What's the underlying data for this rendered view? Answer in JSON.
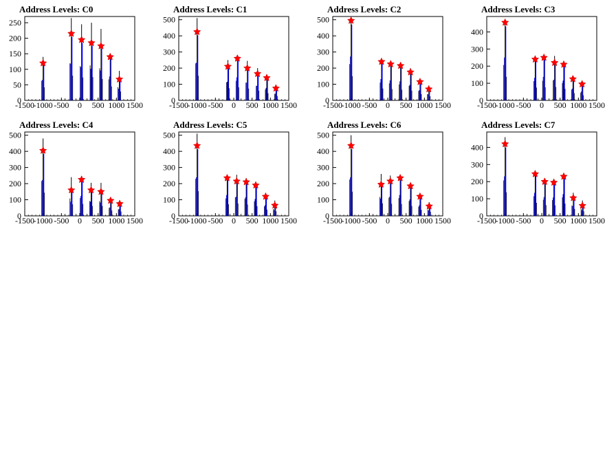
{
  "colors": {
    "background": "#ffffff",
    "axis": "#000000",
    "histogram_black": "#000000",
    "histogram_blue": "#0000ff",
    "marker_red": "#ff0000"
  },
  "marker": "red star markers at detected address-level peaks",
  "chart_data": [
    {
      "type": "histogram",
      "title": "Address Levels: C0",
      "xlim": [
        -1500,
        1500
      ],
      "xticks": [
        "-1500",
        "-1000",
        "-500",
        "0",
        "500",
        "1000",
        "1500"
      ],
      "ylim": [
        0,
        270
      ],
      "yticks": [
        "0",
        "50",
        "100",
        "150",
        "200",
        "250"
      ],
      "peaks": [
        {
          "x": -1000,
          "peak": 120,
          "max": 140
        },
        {
          "x": -230,
          "peak": 215,
          "max": 265
        },
        {
          "x": 50,
          "peak": 195,
          "max": 245
        },
        {
          "x": 320,
          "peak": 185,
          "max": 250
        },
        {
          "x": 580,
          "peak": 175,
          "max": 230
        },
        {
          "x": 830,
          "peak": 140,
          "max": 150
        },
        {
          "x": 1080,
          "peak": 68,
          "max": 95
        }
      ]
    },
    {
      "type": "histogram",
      "title": "Address Levels: C1",
      "xlim": [
        -1500,
        1500
      ],
      "xticks": [
        "-1500",
        "-1000",
        "-500",
        "0",
        "500",
        "1000",
        "1500"
      ],
      "ylim": [
        0,
        520
      ],
      "yticks": [
        "0",
        "100",
        "200",
        "300",
        "400",
        "500"
      ],
      "peaks": [
        {
          "x": -1000,
          "peak": 425,
          "max": 510
        },
        {
          "x": -160,
          "peak": 210,
          "max": 250
        },
        {
          "x": 100,
          "peak": 260,
          "max": 270
        },
        {
          "x": 370,
          "peak": 200,
          "max": 245
        },
        {
          "x": 650,
          "peak": 165,
          "max": 200
        },
        {
          "x": 900,
          "peak": 140,
          "max": 150
        },
        {
          "x": 1150,
          "peak": 75,
          "max": 90
        }
      ]
    },
    {
      "type": "histogram",
      "title": "Address Levels: C2",
      "xlim": [
        -1500,
        1500
      ],
      "xticks": [
        "-1500",
        "-1000",
        "-500",
        "0",
        "500",
        "1000",
        "1500"
      ],
      "ylim": [
        0,
        520
      ],
      "yticks": [
        "0",
        "100",
        "200",
        "300",
        "400",
        "500"
      ],
      "peaks": [
        {
          "x": -1000,
          "peak": 495,
          "max": 500
        },
        {
          "x": -170,
          "peak": 240,
          "max": 245
        },
        {
          "x": 80,
          "peak": 225,
          "max": 235
        },
        {
          "x": 350,
          "peak": 215,
          "max": 220
        },
        {
          "x": 620,
          "peak": 175,
          "max": 200
        },
        {
          "x": 880,
          "peak": 115,
          "max": 130
        },
        {
          "x": 1120,
          "peak": 70,
          "max": 85
        }
      ]
    },
    {
      "type": "histogram",
      "title": "Address Levels: C3",
      "xlim": [
        -1500,
        1500
      ],
      "xticks": [
        "-1500",
        "-1000",
        "-500",
        "0",
        "500",
        "1000",
        "1500"
      ],
      "ylim": [
        0,
        490
      ],
      "yticks": [
        "0",
        "100",
        "200",
        "300",
        "400"
      ],
      "peaks": [
        {
          "x": -1000,
          "peak": 455,
          "max": 460
        },
        {
          "x": -180,
          "peak": 240,
          "max": 250
        },
        {
          "x": 60,
          "peak": 250,
          "max": 255
        },
        {
          "x": 350,
          "peak": 220,
          "max": 260
        },
        {
          "x": 600,
          "peak": 210,
          "max": 225
        },
        {
          "x": 850,
          "peak": 125,
          "max": 140
        },
        {
          "x": 1100,
          "peak": 95,
          "max": 100
        }
      ]
    },
    {
      "type": "histogram",
      "title": "Address Levels: C4",
      "xlim": [
        -1500,
        1500
      ],
      "xticks": [
        "-1500",
        "-1000",
        "-500",
        "0",
        "500",
        "1000",
        "1500"
      ],
      "ylim": [
        0,
        520
      ],
      "yticks": [
        "0",
        "100",
        "200",
        "300",
        "400",
        "500"
      ],
      "peaks": [
        {
          "x": -1000,
          "peak": 405,
          "max": 480
        },
        {
          "x": -230,
          "peak": 160,
          "max": 240
        },
        {
          "x": 50,
          "peak": 225,
          "max": 245
        },
        {
          "x": 310,
          "peak": 160,
          "max": 205
        },
        {
          "x": 580,
          "peak": 150,
          "max": 205
        },
        {
          "x": 840,
          "peak": 95,
          "max": 110
        },
        {
          "x": 1090,
          "peak": 75,
          "max": 90
        }
      ]
    },
    {
      "type": "histogram",
      "title": "Address Levels: C5",
      "xlim": [
        -1500,
        1500
      ],
      "xticks": [
        "-1500",
        "-1000",
        "-500",
        "0",
        "500",
        "1000",
        "1500"
      ],
      "ylim": [
        0,
        520
      ],
      "yticks": [
        "0",
        "100",
        "200",
        "300",
        "400",
        "500"
      ],
      "peaks": [
        {
          "x": -1000,
          "peak": 435,
          "max": 510
        },
        {
          "x": -180,
          "peak": 235,
          "max": 240
        },
        {
          "x": 80,
          "peak": 215,
          "max": 255
        },
        {
          "x": 340,
          "peak": 210,
          "max": 235
        },
        {
          "x": 600,
          "peak": 190,
          "max": 200
        },
        {
          "x": 870,
          "peak": 120,
          "max": 130
        },
        {
          "x": 1120,
          "peak": 65,
          "max": 95
        }
      ]
    },
    {
      "type": "histogram",
      "title": "Address Levels: C6",
      "xlim": [
        -1500,
        1500
      ],
      "xticks": [
        "-1500",
        "-1000",
        "-500",
        "0",
        "500",
        "1000",
        "1500"
      ],
      "ylim": [
        0,
        520
      ],
      "yticks": [
        "0",
        "100",
        "200",
        "300",
        "400",
        "500"
      ],
      "peaks": [
        {
          "x": -1000,
          "peak": 435,
          "max": 500
        },
        {
          "x": -180,
          "peak": 195,
          "max": 260
        },
        {
          "x": 70,
          "peak": 215,
          "max": 250
        },
        {
          "x": 340,
          "peak": 235,
          "max": 245
        },
        {
          "x": 620,
          "peak": 185,
          "max": 205
        },
        {
          "x": 880,
          "peak": 120,
          "max": 125
        },
        {
          "x": 1130,
          "peak": 60,
          "max": 85
        }
      ]
    },
    {
      "type": "histogram",
      "title": "Address Levels: C7",
      "xlim": [
        -1500,
        1500
      ],
      "xticks": [
        "-1500",
        "-1000",
        "-500",
        "0",
        "500",
        "1000",
        "1500"
      ],
      "ylim": [
        0,
        490
      ],
      "yticks": [
        "0",
        "100",
        "200",
        "300",
        "400"
      ],
      "peaks": [
        {
          "x": -1000,
          "peak": 420,
          "max": 460
        },
        {
          "x": -180,
          "peak": 245,
          "max": 255
        },
        {
          "x": 80,
          "peak": 200,
          "max": 210
        },
        {
          "x": 330,
          "peak": 195,
          "max": 205
        },
        {
          "x": 600,
          "peak": 230,
          "max": 240
        },
        {
          "x": 860,
          "peak": 105,
          "max": 135
        },
        {
          "x": 1110,
          "peak": 60,
          "max": 90
        }
      ]
    }
  ]
}
